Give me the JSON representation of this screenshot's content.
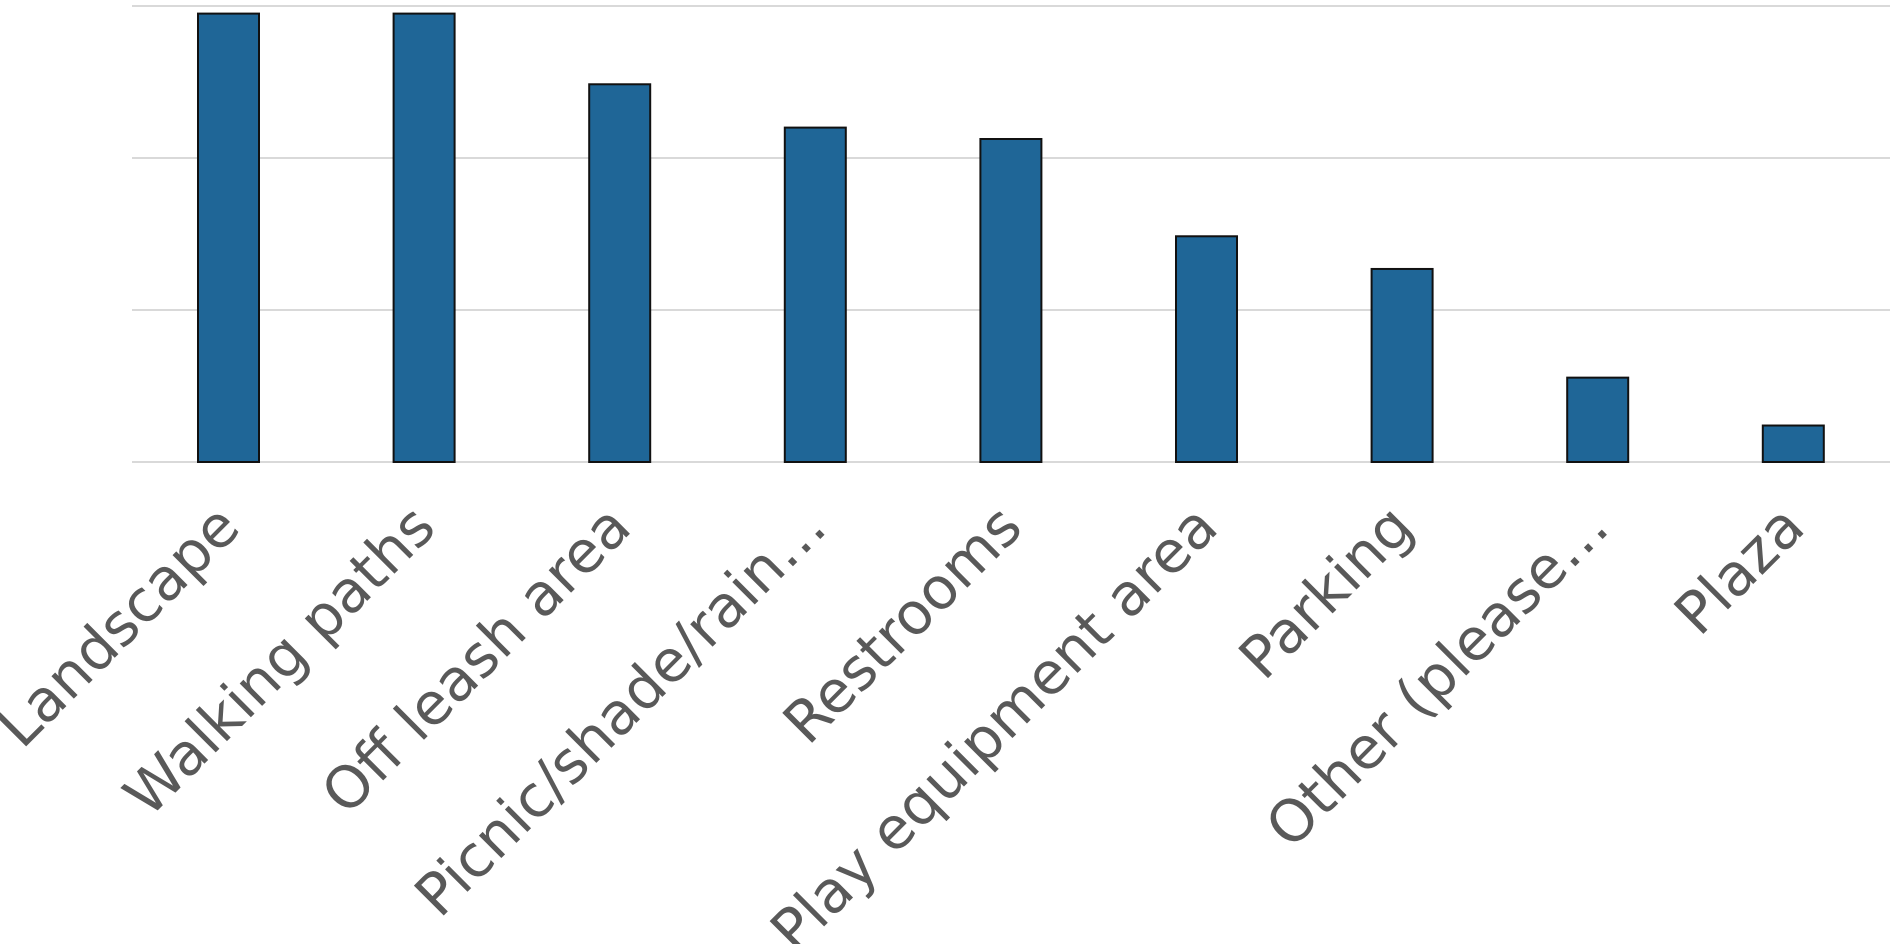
{
  "chart_data": {
    "type": "bar",
    "title": "",
    "xlabel": "",
    "ylabel": "",
    "categories": [
      "Landscape",
      "Walking paths",
      "Off leash area",
      "Picnic/shade/rain…",
      "Restrooms",
      "Play equipment area",
      "Parking",
      "Other (please…",
      "Plaza"
    ],
    "values": [
      59,
      59,
      49.7,
      44,
      42.5,
      29.7,
      25.4,
      11.1,
      4.8
    ],
    "ylim": [
      0,
      60
    ],
    "y_gridlines": [
      0,
      20,
      40,
      60
    ],
    "grid": true,
    "legend": "none",
    "colors": {
      "bar_fill": "#1f6697",
      "bar_outline": "#111111",
      "gridline": "#d9d9d9",
      "tick_label": "#595959"
    }
  }
}
